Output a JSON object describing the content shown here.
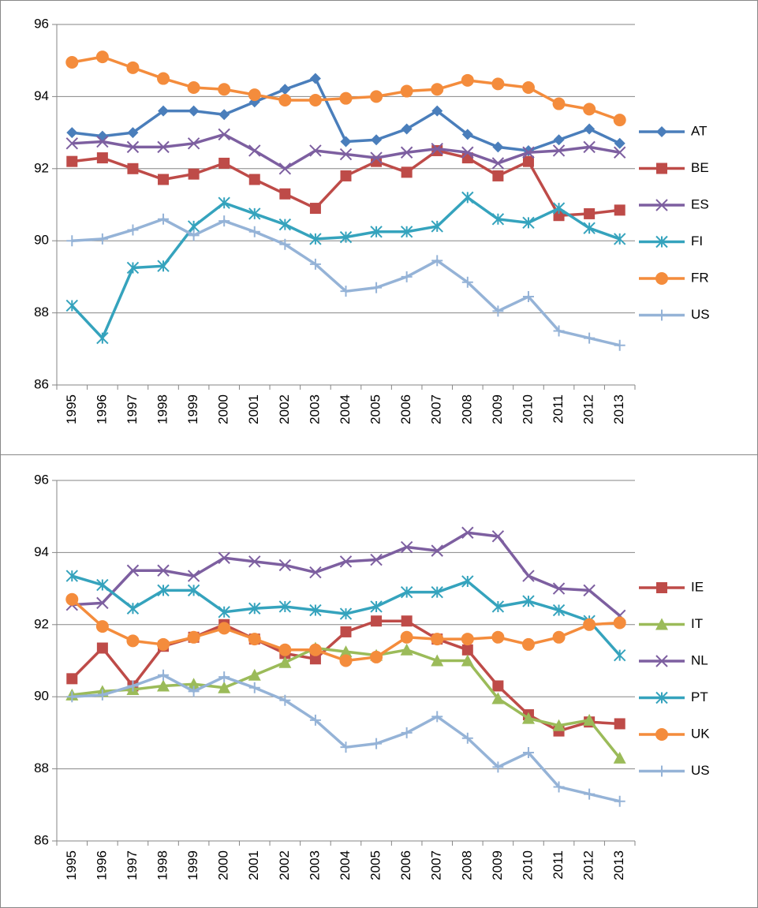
{
  "chart_data": [
    {
      "type": "line",
      "categories": [
        "1995",
        "1996",
        "1997",
        "1998",
        "1999",
        "2000",
        "2001",
        "2002",
        "2003",
        "2004",
        "2005",
        "2006",
        "2007",
        "2008",
        "2009",
        "2010",
        "2011",
        "2012",
        "2013"
      ],
      "ylim": [
        86,
        96
      ],
      "yticks": [
        86,
        88,
        90,
        92,
        94,
        96
      ],
      "grid": true,
      "legend": "right",
      "series": [
        {
          "name": "AT",
          "color": "#4a7ebb",
          "marker": "diamond",
          "values": [
            93.0,
            92.9,
            93.0,
            93.6,
            93.6,
            93.5,
            93.85,
            94.2,
            94.5,
            92.75,
            92.8,
            93.1,
            93.6,
            92.95,
            92.6,
            92.5,
            92.8,
            93.1,
            92.7
          ]
        },
        {
          "name": "BE",
          "color": "#be4b48",
          "marker": "square",
          "values": [
            92.2,
            92.3,
            92.0,
            91.7,
            91.85,
            92.15,
            91.7,
            91.3,
            90.9,
            91.8,
            92.2,
            91.9,
            92.5,
            92.3,
            91.8,
            92.2,
            90.7,
            90.75,
            90.85
          ]
        },
        {
          "name": "ES",
          "color": "#7d5fa0",
          "marker": "x",
          "values": [
            92.7,
            92.75,
            92.6,
            92.6,
            92.7,
            92.95,
            92.5,
            92.0,
            92.5,
            92.4,
            92.3,
            92.45,
            92.55,
            92.45,
            92.15,
            92.45,
            92.5,
            92.6,
            92.45
          ]
        },
        {
          "name": "FI",
          "color": "#35a3bd",
          "marker": "star",
          "values": [
            88.2,
            87.3,
            89.25,
            89.3,
            90.4,
            91.05,
            90.75,
            90.45,
            90.05,
            90.1,
            90.25,
            90.25,
            90.4,
            91.2,
            90.6,
            90.5,
            90.9,
            90.35,
            90.05
          ]
        },
        {
          "name": "FR",
          "color": "#f48c3c",
          "marker": "circle",
          "values": [
            94.95,
            95.1,
            94.8,
            94.5,
            94.25,
            94.2,
            94.05,
            93.9,
            93.9,
            93.95,
            94.0,
            94.15,
            94.2,
            94.45,
            94.35,
            94.25,
            93.8,
            93.65,
            93.35
          ]
        },
        {
          "name": "US",
          "color": "#95b3d7",
          "marker": "plus",
          "values": [
            90.0,
            90.05,
            90.3,
            90.6,
            90.15,
            90.55,
            90.25,
            89.9,
            89.35,
            88.6,
            88.7,
            89.0,
            89.45,
            88.85,
            88.05,
            88.45,
            87.5,
            87.3,
            87.1
          ]
        }
      ]
    },
    {
      "type": "line",
      "categories": [
        "1995",
        "1996",
        "1997",
        "1998",
        "1999",
        "2000",
        "2001",
        "2002",
        "2003",
        "2004",
        "2005",
        "2006",
        "2007",
        "2008",
        "2009",
        "2010",
        "2011",
        "2012",
        "2013"
      ],
      "ylim": [
        86,
        96
      ],
      "yticks": [
        86,
        88,
        90,
        92,
        94,
        96
      ],
      "grid": true,
      "legend": "right",
      "series": [
        {
          "name": "IE",
          "color": "#be4b48",
          "marker": "square",
          "values": [
            90.5,
            91.35,
            90.3,
            91.4,
            91.65,
            92.0,
            91.6,
            91.2,
            91.05,
            91.8,
            92.1,
            92.1,
            91.6,
            91.3,
            90.3,
            89.5,
            89.05,
            89.3,
            89.25
          ]
        },
        {
          "name": "IT",
          "color": "#9bbb59",
          "marker": "triangle",
          "values": [
            90.05,
            90.15,
            90.2,
            90.3,
            90.35,
            90.25,
            90.6,
            90.95,
            91.35,
            91.25,
            91.15,
            91.3,
            91.0,
            91.0,
            89.95,
            89.4,
            89.2,
            89.35,
            88.3
          ]
        },
        {
          "name": "NL",
          "color": "#7d5fa0",
          "marker": "x",
          "values": [
            92.55,
            92.6,
            93.5,
            93.5,
            93.35,
            93.85,
            93.75,
            93.65,
            93.45,
            93.75,
            93.8,
            94.15,
            94.05,
            94.55,
            94.45,
            93.35,
            93.0,
            92.95,
            92.25
          ]
        },
        {
          "name": "PT",
          "color": "#35a3bd",
          "marker": "star",
          "values": [
            93.35,
            93.1,
            92.45,
            92.95,
            92.95,
            92.35,
            92.45,
            92.5,
            92.4,
            92.3,
            92.5,
            92.9,
            92.9,
            93.2,
            92.5,
            92.65,
            92.4,
            92.1,
            91.15
          ]
        },
        {
          "name": "UK",
          "color": "#f48c3c",
          "marker": "circle",
          "values": [
            92.7,
            91.95,
            91.55,
            91.45,
            91.65,
            91.9,
            91.6,
            91.3,
            91.3,
            91.0,
            91.1,
            91.65,
            91.6,
            91.6,
            91.65,
            91.45,
            91.65,
            92.0,
            92.05
          ]
        },
        {
          "name": "US",
          "color": "#95b3d7",
          "marker": "plus",
          "values": [
            90.0,
            90.05,
            90.3,
            90.6,
            90.15,
            90.55,
            90.25,
            89.9,
            89.35,
            88.6,
            88.7,
            89.0,
            89.45,
            88.85,
            88.05,
            88.45,
            87.5,
            87.3,
            87.1
          ]
        }
      ]
    }
  ]
}
